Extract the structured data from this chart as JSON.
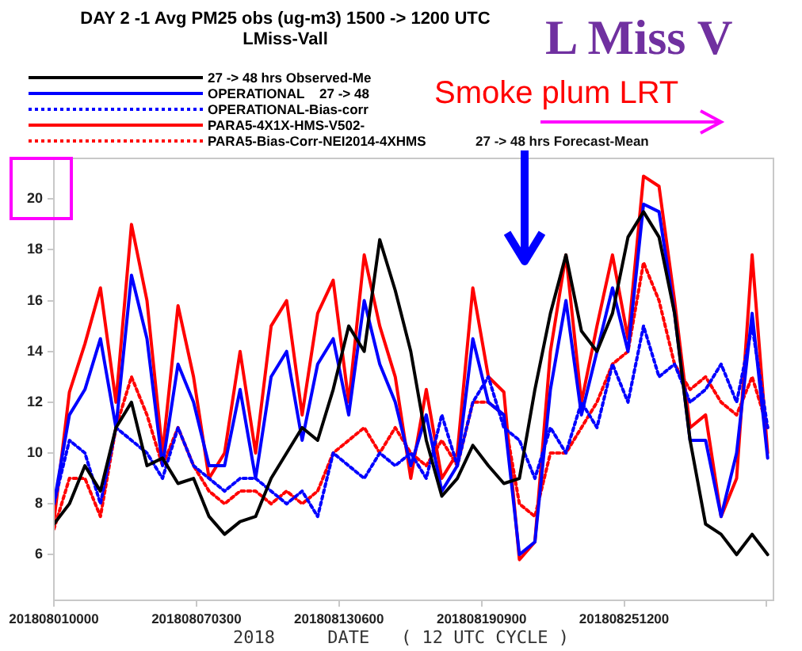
{
  "chart_data": {
    "type": "line",
    "title": "DAY 2  -1 Avg PM25  obs  (ug-m3) 1500 -> 1200 UTC",
    "subtitle": "LMiss-Vall",
    "xlabel": "2018     DATE   ( 12 UTC CYCLE )",
    "annotations": [
      "L Miss V",
      "Smoke plum LRT",
      "27 -> 48 hrs Forecast-Mean"
    ],
    "x": [
      "2018-08-01T00:00",
      "2018-08-01T16:00",
      "2018-08-02T08:00",
      "2018-08-03T00:00",
      "2018-08-03T16:00",
      "2018-08-04T08:00",
      "2018-08-05T00:00",
      "2018-08-05T16:00",
      "2018-08-06T08:00",
      "2018-08-07T00:00",
      "2018-08-07T16:00",
      "2018-08-08T08:00",
      "2018-08-09T00:00",
      "2018-08-09T16:00",
      "2018-08-10T08:00",
      "2018-08-11T00:00",
      "2018-08-11T16:00",
      "2018-08-12T08:00",
      "2018-08-13T00:00",
      "2018-08-13T16:00",
      "2018-08-14T08:00",
      "2018-08-15T00:00",
      "2018-08-15T16:00",
      "2018-08-16T08:00",
      "2018-08-17T00:00",
      "2018-08-17T16:00",
      "2018-08-18T08:00",
      "2018-08-19T00:00",
      "2018-08-19T16:00",
      "2018-08-20T08:00",
      "2018-08-21T00:00",
      "2018-08-21T16:00",
      "2018-08-22T08:00",
      "2018-08-23T00:00",
      "2018-08-23T16:00",
      "2018-08-24T08:00",
      "2018-08-25T00:00",
      "2018-08-25T16:00",
      "2018-08-26T08:00",
      "2018-08-27T00:00",
      "2018-08-27T16:00",
      "2018-08-28T08:00",
      "2018-08-29T00:00",
      "2018-08-29T16:00",
      "2018-08-30T08:00",
      "2018-08-31T00:00",
      "2018-08-31T16:00"
    ],
    "xlim": [
      "2018-08-01T00:00",
      "2018-08-31T22:00"
    ],
    "ylim": [
      4.2,
      21.6
    ],
    "xticks": [
      {
        "value": "2018-08-01T00:00",
        "label": "201808010000"
      },
      {
        "value": "2018-08-07T03:00",
        "label": "201808070300"
      },
      {
        "value": "2018-08-13T06:00",
        "label": "201808130600"
      },
      {
        "value": "2018-08-19T09:00",
        "label": "201808190900"
      },
      {
        "value": "2018-08-25T12:00",
        "label": "201808251200"
      },
      {
        "value": "2018-08-31T15:00",
        "label": null
      }
    ],
    "yticks": [
      6,
      8,
      10,
      12,
      14,
      16,
      18,
      20
    ],
    "legend": "top left",
    "marker": "none",
    "series": [
      {
        "name": "27 -> 48 hrs Observed-Me",
        "color": "#000000",
        "line_style": "solid",
        "values": [
          7.2,
          8,
          9.5,
          8.5,
          11,
          12,
          9.5,
          9.8,
          8.8,
          9,
          7.5,
          6.8,
          7.3,
          7.5,
          9,
          10,
          11,
          10.5,
          12.5,
          15,
          14,
          18.4,
          16.4,
          14,
          10.5,
          8.3,
          9,
          10.3,
          9.5,
          8.8,
          9,
          12.5,
          15.5,
          17.8,
          14.8,
          14,
          15.5,
          18.5,
          19.5,
          18.5,
          15.5,
          10.5,
          7.2,
          6.8,
          6,
          6.8,
          6
        ]
      },
      {
        "name": "OPERATIONAL    27 -> 48",
        "color": "#0000ff",
        "line_style": "solid",
        "values": [
          8,
          11.5,
          12.5,
          14.5,
          11,
          17,
          14.5,
          9.5,
          13.5,
          12,
          9.5,
          9.5,
          12.5,
          9,
          13,
          14,
          10.5,
          13.5,
          14.5,
          11.5,
          16,
          13.5,
          12,
          9.5,
          11.5,
          8.5,
          9.5,
          14.5,
          12,
          11.5,
          6,
          6.5,
          12.5,
          16,
          11.5,
          14,
          16.5,
          14,
          19.8,
          19.5,
          15.5,
          10.5,
          10.5,
          7.5,
          10,
          15.5,
          9.8
        ]
      },
      {
        "name": "OPERATIONAL-Bias-corr",
        "color": "#0000ff",
        "line_style": "dotted",
        "values": [
          8,
          10.5,
          10,
          8,
          11,
          10.5,
          10,
          9,
          11,
          9.5,
          9,
          8.5,
          9,
          9,
          8.5,
          8,
          8.5,
          7.5,
          10,
          9.5,
          9,
          10,
          9.5,
          10,
          9,
          11.5,
          9.5,
          12,
          13,
          11,
          10.5,
          9,
          11,
          10,
          12,
          11,
          13.5,
          12,
          15,
          13,
          13.5,
          12,
          12.5,
          13.5,
          12,
          15,
          11
        ]
      },
      {
        "name": "PARA5-4X1X-HMS-V502-",
        "color": "#ff0000",
        "line_style": "solid",
        "values": [
          7.3,
          12.4,
          14.3,
          16.5,
          12,
          19,
          16,
          10,
          15.8,
          13,
          9,
          10,
          14,
          10,
          15,
          16,
          11.5,
          15.5,
          16.8,
          12,
          17.8,
          15,
          13,
          9,
          12.5,
          9,
          10,
          16.5,
          13,
          12.4,
          5.8,
          6.5,
          14,
          17.8,
          12,
          15,
          17.8,
          14.5,
          20.9,
          20.5,
          16,
          11,
          11.5,
          7.5,
          9,
          17.8,
          10
        ]
      },
      {
        "name": "PARA5-Bias-Corr-NEI2014-4XHMS",
        "color": "#ff0000",
        "line_style": "dotted",
        "values": [
          7,
          9,
          9,
          7.5,
          11,
          13,
          11.5,
          9.5,
          11,
          9.5,
          8.5,
          8,
          8.5,
          8.5,
          8,
          8.5,
          8,
          8.5,
          10,
          10.5,
          11,
          10,
          11,
          10,
          9.5,
          10.5,
          9.5,
          12,
          12,
          11.5,
          8,
          7.5,
          10,
          10,
          11,
          12,
          13.5,
          14,
          17.5,
          16,
          13.5,
          12.5,
          13,
          12,
          11.5,
          13,
          11
        ]
      }
    ]
  }
}
